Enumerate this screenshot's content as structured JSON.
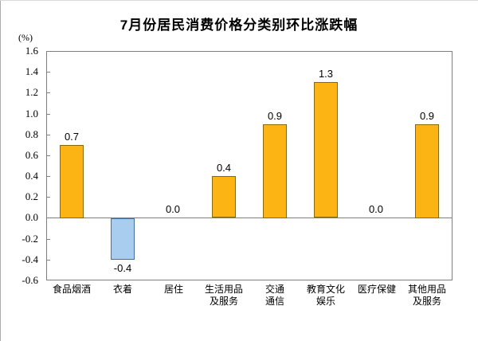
{
  "title": "7月份居民消费价格分类别环比涨跌幅",
  "unit_label": "(%)",
  "colors": {
    "positive_fill": "#FBB414",
    "positive_border": "#8a6a00",
    "negative_fill": "#A8CDEE",
    "negative_border": "#41719C",
    "plot_border": "#7f7f7f",
    "zero_line": "#7f7f7f",
    "text": "#000000"
  },
  "chart_data": {
    "type": "bar",
    "title": "7月份居民消费价格分类别环比涨跌幅",
    "unit": "(%)",
    "categories": [
      "食品烟酒",
      "衣着",
      "居住",
      "生活用品\n及服务",
      "交通\n通信",
      "教育文化\n娱乐",
      "医疗保健",
      "其他用品\n及服务"
    ],
    "values": [
      0.7,
      -0.4,
      0.0,
      0.4,
      0.9,
      1.3,
      0.0,
      0.9
    ],
    "value_labels": [
      "0.7",
      "-0.4",
      "0.0",
      "0.4",
      "0.9",
      "1.3",
      "0.0",
      "0.9"
    ],
    "ylim": [
      -0.6,
      1.6
    ],
    "ytick_step": 0.2,
    "yticks": [
      "1.6",
      "1.4",
      "1.2",
      "1.0",
      "0.8",
      "0.6",
      "0.4",
      "0.2",
      "0.0",
      "-0.2",
      "-0.4",
      "-0.6"
    ],
    "grid": false,
    "legend": "none",
    "xlabel": "",
    "ylabel": "(%)"
  }
}
